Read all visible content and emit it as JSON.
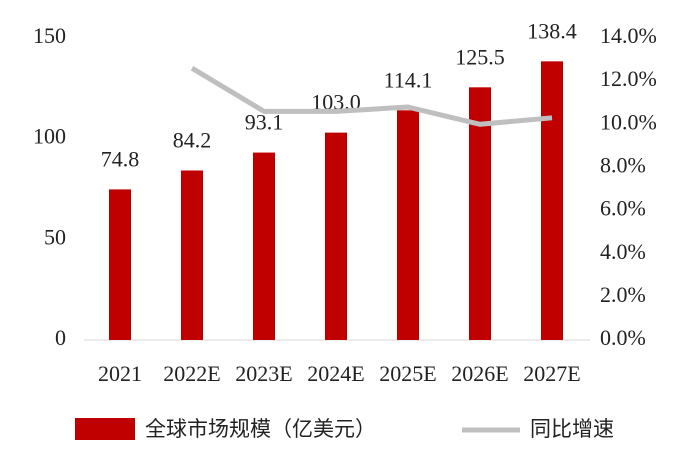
{
  "chart_data": {
    "type": "bar",
    "categories": [
      "2021",
      "2022E",
      "2023E",
      "2024E",
      "2025E",
      "2026E",
      "2027E"
    ],
    "series": [
      {
        "name": "全球市场规模（亿美元）",
        "type": "bar",
        "color": "#c00000",
        "values": [
          74.8,
          84.2,
          93.1,
          103.0,
          114.1,
          125.5,
          138.4
        ],
        "value_labels": [
          "74.8",
          "84.2",
          "93.1",
          "103.0",
          "114.1",
          "125.5",
          "138.4"
        ]
      },
      {
        "name": "同比增速",
        "type": "line",
        "axis": "y2",
        "color": "#bfbfbf",
        "values": [
          null,
          12.6,
          10.6,
          10.6,
          10.8,
          10.0,
          10.3
        ]
      }
    ],
    "ylim": [
      0,
      150
    ],
    "yticks": [
      0,
      50,
      100,
      150
    ],
    "y2lim": [
      0,
      14
    ],
    "y2ticks": [
      {
        "value": 0,
        "label": "0.0%"
      },
      {
        "value": 2,
        "label": "2.0%"
      },
      {
        "value": 4,
        "label": "4.0%"
      },
      {
        "value": 6,
        "label": "6.0%"
      },
      {
        "value": 8,
        "label": "8.0%"
      },
      {
        "value": 10,
        "label": "10.0%"
      },
      {
        "value": 12,
        "label": "12.0%"
      },
      {
        "value": 14,
        "label": "14.0%"
      }
    ],
    "legend": "bottom"
  }
}
